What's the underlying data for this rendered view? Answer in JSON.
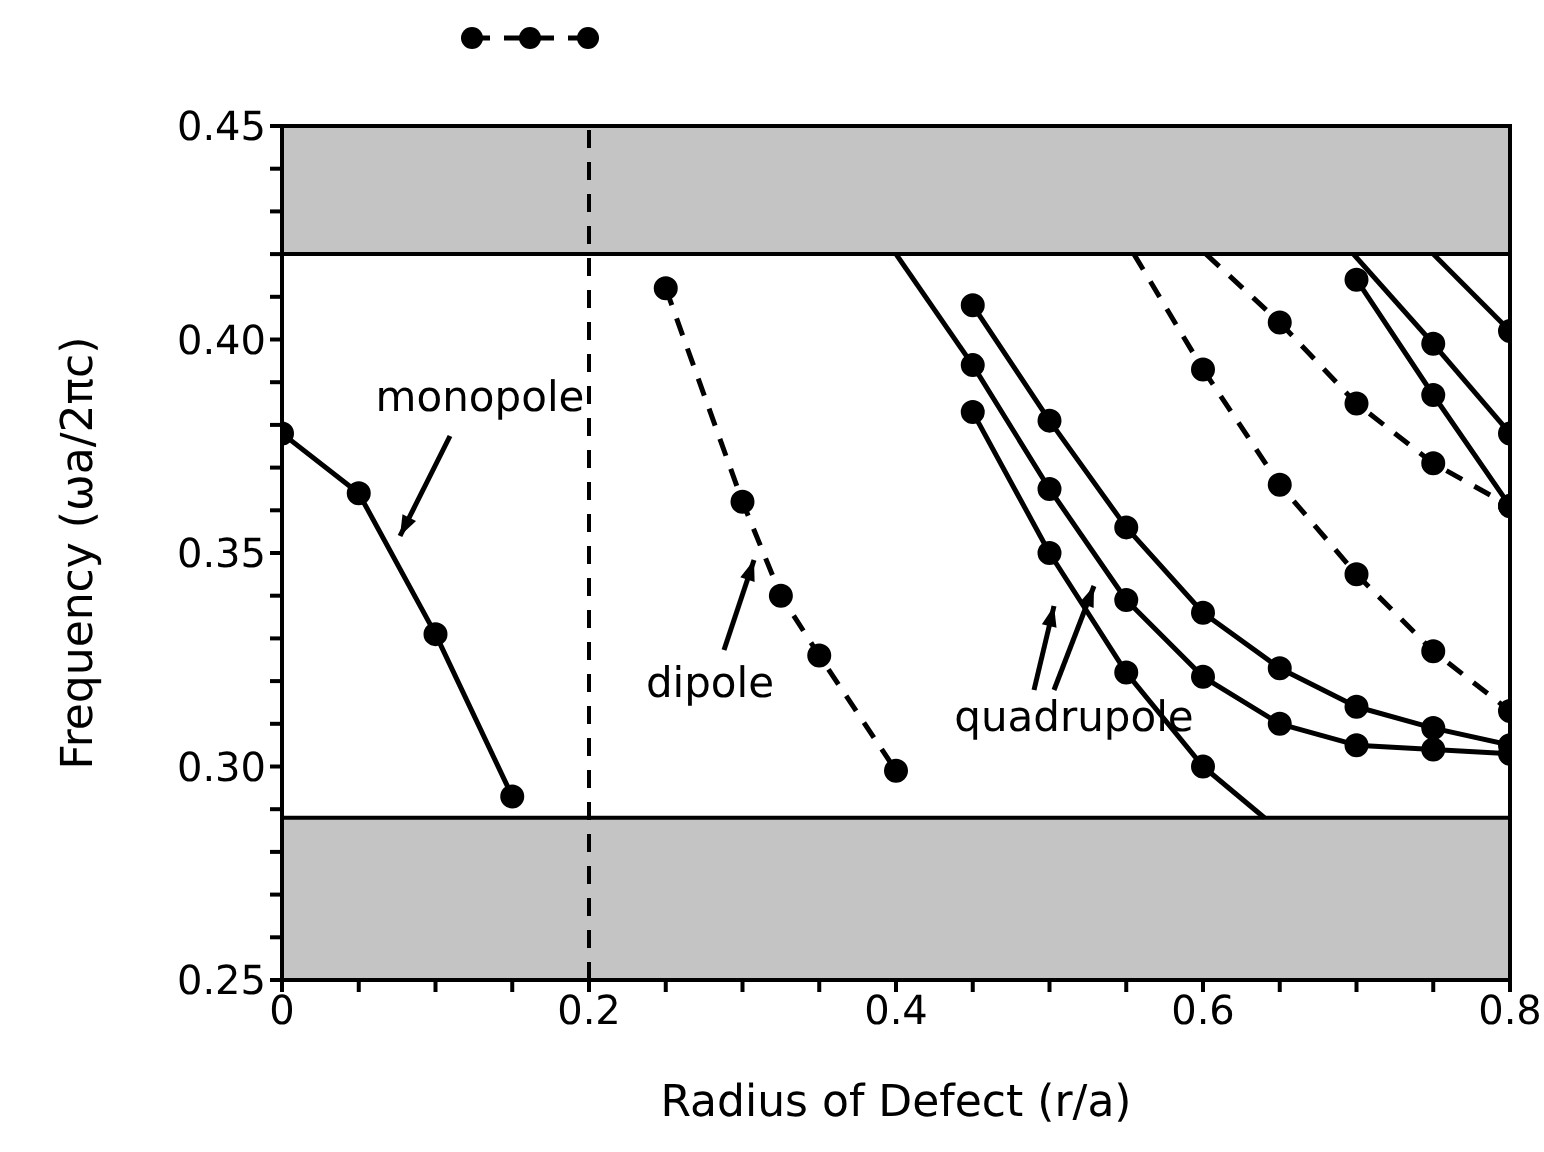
{
  "chart_data": {
    "type": "line",
    "xlabel": "Radius of Defect (r/a)",
    "ylabel": "Frequency (ωa/2πc)",
    "xlim": [
      0,
      0.8
    ],
    "ylim": [
      0.25,
      0.45
    ],
    "xticks": [
      0,
      {
        "value": 0.05,
        "label": null
      },
      {
        "value": 0.1,
        "label": null
      },
      {
        "value": 0.15,
        "label": null
      },
      0.2,
      {
        "value": 0.25,
        "label": null
      },
      {
        "value": 0.3,
        "label": null
      },
      {
        "value": 0.35,
        "label": null
      },
      0.4,
      {
        "value": 0.45,
        "label": null
      },
      {
        "value": 0.5,
        "label": null
      },
      {
        "value": 0.55,
        "label": null
      },
      0.6,
      {
        "value": 0.65,
        "label": null
      },
      {
        "value": 0.7,
        "label": null
      },
      {
        "value": 0.75,
        "label": null
      },
      0.8
    ],
    "yticks": [
      0.25,
      {
        "value": 0.26,
        "label": null
      },
      {
        "value": 0.27,
        "label": null
      },
      {
        "value": 0.28,
        "label": null
      },
      {
        "value": 0.29,
        "label": null
      },
      {
        "value": 0.3,
        "label": "0.30"
      },
      {
        "value": 0.31,
        "label": null
      },
      {
        "value": 0.32,
        "label": null
      },
      {
        "value": 0.33,
        "label": null
      },
      {
        "value": 0.34,
        "label": null
      },
      0.35,
      {
        "value": 0.36,
        "label": null
      },
      {
        "value": 0.37,
        "label": null
      },
      {
        "value": 0.38,
        "label": null
      },
      {
        "value": 0.39,
        "label": null
      },
      {
        "value": 0.4,
        "label": "0.40"
      },
      {
        "value": 0.41,
        "label": null
      },
      {
        "value": 0.42,
        "label": null
      },
      {
        "value": 0.43,
        "label": null
      },
      {
        "value": 0.44,
        "label": null
      },
      0.45
    ],
    "grid": false,
    "series": [
      {
        "color": "#000000",
        "line_style": "solid",
        "marker": "circle",
        "x": [
          0,
          0.05,
          0.1,
          0.15
        ],
        "values": [
          0.378,
          0.364,
          0.331,
          0.293
        ]
      },
      {
        "color": "#000000",
        "line_style": "dashed",
        "marker": "circle",
        "x": [
          0.25,
          0.3,
          0.325,
          0.35,
          0.4
        ],
        "values": [
          0.412,
          0.362,
          0.34,
          0.326,
          0.299
        ]
      },
      {
        "color": "#000000",
        "line_style": "solid",
        "marker": "circle",
        "x": [
          0.45,
          0.5,
          0.55,
          0.6,
          0.65,
          0.7,
          0.75,
          0.8
        ],
        "values": [
          0.408,
          0.381,
          0.356,
          0.336,
          0.323,
          0.314,
          0.309,
          0.305
        ]
      },
      {
        "color": "#000000",
        "line_style": "solid",
        "x": [
          0.4,
          0.45
        ],
        "values": [
          0.42,
          0.394
        ]
      },
      {
        "color": "#000000",
        "line_style": "solid",
        "marker": "circle",
        "x": [
          0.45,
          0.5,
          0.55,
          0.6,
          0.65,
          0.7,
          0.75,
          0.8
        ],
        "values": [
          0.394,
          0.365,
          0.339,
          0.321,
          0.31,
          0.305,
          0.304,
          0.303
        ]
      },
      {
        "color": "#000000",
        "line_style": "solid",
        "marker": "circle",
        "x": [
          0.45,
          0.5,
          0.55,
          0.6
        ],
        "values": [
          0.383,
          0.35,
          0.322,
          0.3
        ]
      },
      {
        "color": "#000000",
        "line_style": "solid",
        "x": [
          0.6,
          0.64
        ],
        "values": [
          0.3,
          0.288
        ]
      },
      {
        "color": "#000000",
        "line_style": "dashed",
        "x": [
          0.555,
          0.6
        ],
        "values": [
          0.42,
          0.393
        ]
      },
      {
        "color": "#000000",
        "line_style": "dashed",
        "marker": "circle",
        "x": [
          0.6,
          0.65,
          0.7,
          0.75,
          0.8
        ],
        "values": [
          0.393,
          0.366,
          0.345,
          0.327,
          0.313
        ]
      },
      {
        "color": "#000000",
        "line_style": "dashed",
        "x": [
          0.602,
          0.65
        ],
        "values": [
          0.42,
          0.404
        ]
      },
      {
        "color": "#000000",
        "line_style": "dashed",
        "marker": "circle",
        "x": [
          0.65,
          0.7,
          0.75,
          0.8
        ],
        "values": [
          0.404,
          0.385,
          0.371,
          0.361
        ]
      },
      {
        "color": "#000000",
        "line_style": "solid",
        "x": [
          0.698,
          0.75
        ],
        "values": [
          0.42,
          0.399
        ]
      },
      {
        "color": "#000000",
        "line_style": "solid",
        "marker": "circle",
        "x": [
          0.75,
          0.8
        ],
        "values": [
          0.399,
          0.378
        ]
      },
      {
        "color": "#000000",
        "line_style": "solid",
        "marker": "circle",
        "x": [
          0.7,
          0.75,
          0.8
        ],
        "values": [
          0.414,
          0.387,
          0.361
        ]
      },
      {
        "color": "#000000",
        "line_style": "solid",
        "x": [
          0.75,
          0.8
        ],
        "values": [
          0.42,
          0.402
        ]
      },
      {
        "color": "#000000",
        "line_style": "solid",
        "marker": "circle",
        "x": [
          0.8
        ],
        "values": [
          0.402
        ]
      }
    ],
    "bands": [
      {
        "axis": "y",
        "from": 0.42,
        "to": 0.45,
        "color": "#c4c4c4"
      },
      {
        "axis": "y",
        "from": 0.25,
        "to": 0.288,
        "color": "#c4c4c4"
      }
    ],
    "ref_lines": [
      {
        "axis": "x",
        "value": 0.2,
        "line_style": "dashed",
        "color": "#000000"
      }
    ],
    "annotations": [
      "monopole",
      "dipole",
      "quadrupole"
    ]
  }
}
